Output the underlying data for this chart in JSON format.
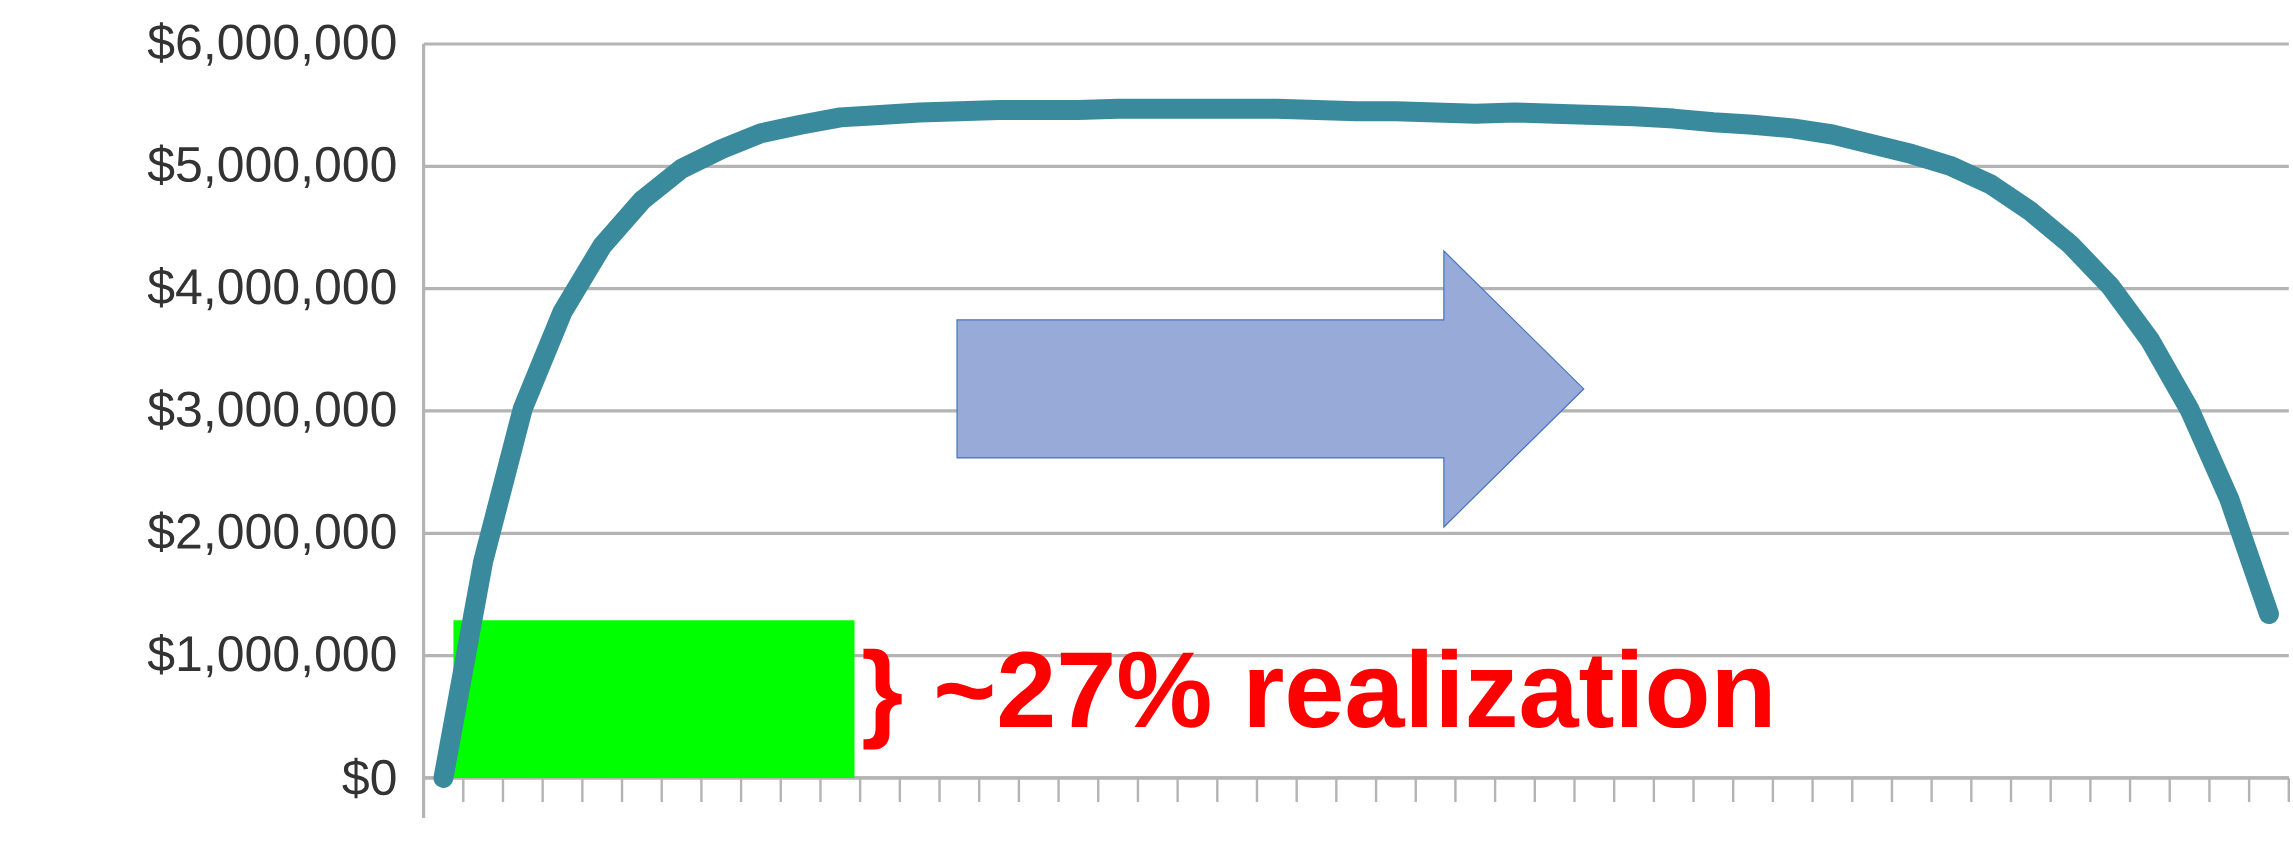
{
  "chart_data": {
    "type": "line",
    "categories": [
      null,
      null,
      null,
      null,
      null,
      null,
      null,
      null,
      null,
      null,
      null,
      null,
      null,
      null,
      null,
      null,
      null,
      null,
      null,
      null,
      null,
      null,
      null,
      null,
      null,
      null,
      null,
      null,
      null,
      null,
      null,
      null,
      null,
      null,
      null,
      null,
      null,
      null,
      null,
      null,
      null,
      null,
      null,
      null,
      null,
      null,
      null
    ],
    "series": [
      {
        "color": "#3a8a9e",
        "values": [
          0,
          1770000,
          3020000,
          3810000,
          4350000,
          4720000,
          4980000,
          5140000,
          5270000,
          5340000,
          5400000,
          5420000,
          5440000,
          5450000,
          5460000,
          5460000,
          5460000,
          5470000,
          5470000,
          5470000,
          5470000,
          5470000,
          5460000,
          5450000,
          5450000,
          5440000,
          5430000,
          5440000,
          5430000,
          5420000,
          5410000,
          5390000,
          5360000,
          5340000,
          5310000,
          5260000,
          5180000,
          5100000,
          5000000,
          4850000,
          4630000,
          4360000,
          4020000,
          3580000,
          3010000,
          2280000,
          1340000
        ]
      }
    ],
    "ylim": [
      0,
      6000000
    ],
    "yticks": [
      {
        "value": 0,
        "label": "$0"
      },
      {
        "value": 1000000,
        "label": "$1,000,000"
      },
      {
        "value": 2000000,
        "label": "$2,000,000"
      },
      {
        "value": 3000000,
        "label": "$3,000,000"
      },
      {
        "value": 4000000,
        "label": "$4,000,000"
      },
      {
        "value": 5000000,
        "label": "$5,000,000"
      },
      {
        "value": 6000000,
        "label": "$6,000,000"
      }
    ],
    "grid": "y",
    "bands": [
      {
        "axis": "y",
        "from": 0,
        "to": 1290000,
        "label": "} ~27% realization",
        "color": "#00ff00"
      }
    ]
  }
}
